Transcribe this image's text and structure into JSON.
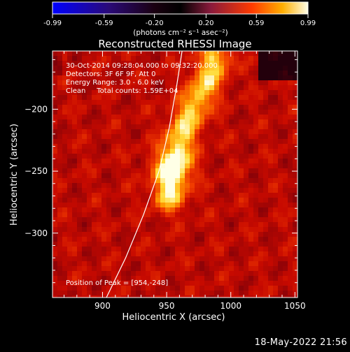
{
  "chart_data": {
    "type": "heatmap",
    "title": "Reconstructed RHESSI Image",
    "xlabel": "Heliocentric X (arcsec)",
    "ylabel": "Heliocentric Y (arcsec)",
    "xlim": [
      861,
      1052
    ],
    "ylim": [
      -352,
      -153
    ],
    "x_ticks": [
      900,
      950,
      1000,
      1050
    ],
    "y_ticks": [
      -200,
      -250,
      -300
    ],
    "colorbar": {
      "ticks": [
        "-0.99",
        "-0.59",
        "-0.20",
        "0.20",
        "0.59",
        "0.99"
      ],
      "tick_values": [
        -0.99,
        -0.59,
        -0.2,
        0.2,
        0.59,
        0.99
      ],
      "range": [
        -0.99,
        0.99
      ],
      "units": "(photons cm⁻² s⁻¹ asec⁻²)"
    },
    "info_lines": [
      "30-Oct-2014 09:28:04.000 to 09:32:20.000",
      "Detectors: 3F 6F 9F, Att 0",
      "Energy Range: 3.0 - 6.0 keV",
      "Clean     Total counts: 1.59E+04"
    ],
    "peak_label": "Position of Peak = [954,-248]",
    "peak": [
      954,
      -248
    ],
    "limb_curve": [
      [
        903,
        -352
      ],
      [
        918,
        -320
      ],
      [
        932,
        -285
      ],
      [
        944,
        -250
      ],
      [
        952,
        -215
      ],
      [
        958,
        -180
      ],
      [
        962,
        -153
      ]
    ],
    "bright_ridge": [
      [
        952,
        -270
      ],
      [
        955,
        -250
      ],
      [
        960,
        -225
      ],
      [
        968,
        -205
      ],
      [
        978,
        -185
      ],
      [
        988,
        -160
      ]
    ],
    "colors": {
      "limb": "#ffffff",
      "background": "#000000"
    }
  },
  "footer": {
    "date": "18-May-2022 21:56"
  }
}
